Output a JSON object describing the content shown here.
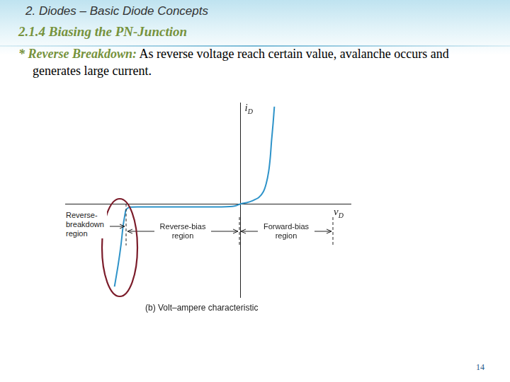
{
  "slide": {
    "header": "2. Diodes – Basic Diode Concepts",
    "section": "2.1.4 Biasing  the PN-Junction",
    "bullet": {
      "term": "* Reverse Breakdown:",
      "text": "As reverse voltage reach certain value, avalanche occurs and generates large current."
    },
    "page_number": 14
  },
  "chart_data": {
    "type": "line",
    "x_label": "vD",
    "y_label": "iD",
    "caption": "(b) Volt–ampere characteristic",
    "annotations": [
      "Reverse-breakdown region",
      "Reverse-bias region",
      "Forward-bias region"
    ],
    "x": [
      -3.09,
      -3.0,
      -2.93,
      -2.88,
      -2.84,
      -2.81,
      -2.76,
      -2.71,
      -2.5,
      -2.0,
      -1.5,
      -1.0,
      -0.6,
      -0.35,
      -0.2,
      -0.1,
      0,
      0.15,
      0.3,
      0.45,
      0.56,
      0.63,
      0.69,
      0.73,
      0.76,
      0.8,
      0.83
    ],
    "values": [
      -2.04,
      -1.5,
      -1.0,
      -0.55,
      -0.3,
      -0.15,
      -0.1,
      -0.08,
      -0.075,
      -0.075,
      -0.075,
      -0.075,
      -0.075,
      -0.07,
      -0.06,
      -0.04,
      0,
      0.03,
      0.08,
      0.16,
      0.3,
      0.5,
      0.8,
      1.15,
      1.55,
      2.0,
      2.4
    ],
    "color": "#2e93c9",
    "xlim": [
      -4.3,
      2.7
    ],
    "ylim": [
      -2.3,
      2.5
    ],
    "tick_labels": false,
    "grid": false
  }
}
